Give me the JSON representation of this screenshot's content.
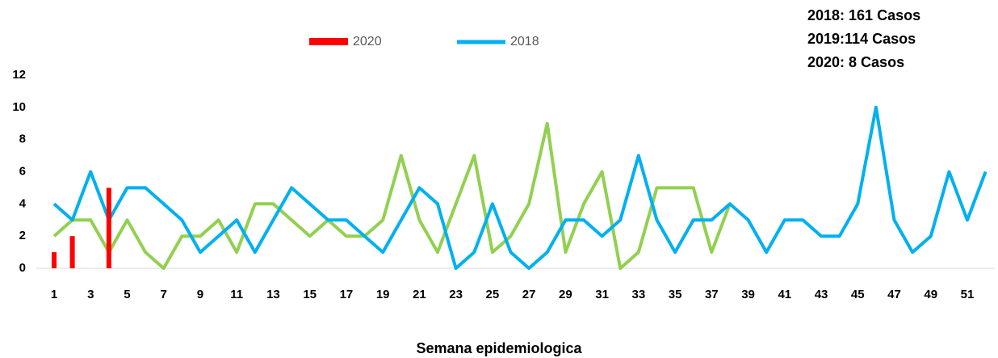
{
  "chart_data": {
    "type": "line",
    "annotations": [
      "2018: 161 Casos",
      "2019:114 Casos",
      "2020: 8 Casos"
    ],
    "x_label": "Semana epidemiologica",
    "categories": [
      1,
      null,
      3,
      null,
      5,
      null,
      7,
      null,
      9,
      null,
      11,
      null,
      13,
      null,
      15,
      null,
      17,
      null,
      19,
      null,
      21,
      null,
      23,
      null,
      25,
      null,
      27,
      null,
      29,
      null,
      31,
      null,
      33,
      null,
      35,
      null,
      37,
      null,
      39,
      null,
      41,
      null,
      43,
      null,
      45,
      null,
      47,
      null,
      49,
      null,
      51,
      null
    ],
    "ylim": [
      0,
      12
    ],
    "yticks": [
      0,
      2,
      4,
      6,
      8,
      10,
      12
    ],
    "series": [
      {
        "name": "2020",
        "type": "bar",
        "color": "#ff0000",
        "values": [
          1,
          2,
          0,
          5,
          null,
          null,
          null,
          null,
          null,
          null,
          null,
          null,
          null,
          null,
          null,
          null,
          null,
          null,
          null,
          null,
          null,
          null,
          null,
          null,
          null,
          null,
          null,
          null,
          null,
          null,
          null,
          null,
          null,
          null,
          null,
          null,
          null,
          null,
          null,
          null,
          null,
          null,
          null,
          null,
          null,
          null,
          null,
          null,
          null,
          null,
          null,
          null
        ]
      },
      {
        "name": "2018",
        "type": "line",
        "color": "#00b0f0",
        "values": [
          4,
          3,
          6,
          3,
          5,
          5,
          4,
          3,
          1,
          2,
          3,
          1,
          3,
          5,
          4,
          3,
          3,
          2,
          1,
          3,
          5,
          4,
          0,
          1,
          4,
          1,
          0,
          1,
          3,
          3,
          2,
          3,
          7,
          3,
          1,
          3,
          3,
          4,
          3,
          1,
          3,
          3,
          2,
          2,
          4,
          10,
          3,
          1,
          2,
          6,
          3,
          6
        ]
      },
      {
        "type": "line",
        "color": "#92d050",
        "values": [
          2,
          3,
          3,
          1,
          3,
          1,
          0,
          2,
          2,
          3,
          1,
          4,
          4,
          3,
          2,
          3,
          2,
          2,
          3,
          7,
          3,
          1,
          4,
          7,
          1,
          2,
          4,
          9,
          1,
          4,
          6,
          0,
          1,
          5,
          5,
          5,
          1,
          4,
          null,
          null,
          null,
          null,
          null,
          null,
          null,
          null,
          null,
          null,
          null,
          null,
          null,
          null
        ]
      }
    ]
  }
}
